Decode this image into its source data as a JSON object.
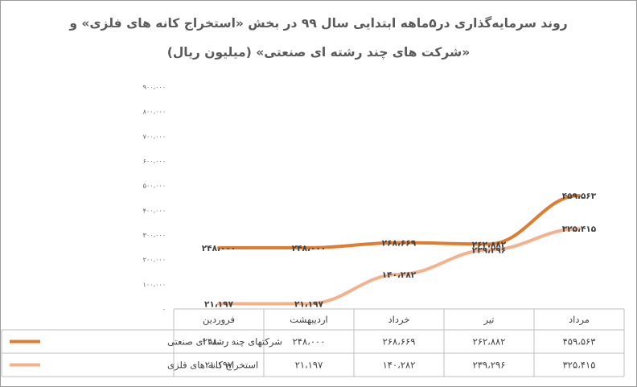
{
  "title_line1": "روند سرمایه‌گذاری در۵ماهه ابتدایی سال ۹۹ در بخش «استخراج کانه های فلزی» و",
  "title_line2": "«شرکت های چند رشته ای صنعتی» (میلیون ریال)",
  "colors": {
    "series_industrial": "#e07b2f",
    "series_mining": "#f5b08c",
    "grid": "#d9d9d9",
    "text": "#595959"
  },
  "chart_data": {
    "type": "line",
    "title": "روند سرمایه‌گذاری در۵ماهه ابتدایی سال ۹۹ در بخش «استخراج کانه های فلزی» و «شرکت های چند رشته ای صنعتی» (میلیون ریال)",
    "categories": [
      "فروردین",
      "اردیبهشت",
      "خرداد",
      "تیر",
      "مرداد"
    ],
    "ylim": [
      0,
      900000
    ],
    "ytick_values": [
      0,
      100000,
      200000,
      300000,
      400000,
      500000,
      600000,
      700000,
      800000,
      900000
    ],
    "ytick_labels": [
      "۰",
      "۱۰۰،۰۰۰",
      "۲۰۰،۰۰۰",
      "۳۰۰،۰۰۰",
      "۴۰۰،۰۰۰",
      "۵۰۰،۰۰۰",
      "۶۰۰،۰۰۰",
      "۷۰۰،۰۰۰",
      "۸۰۰،۰۰۰",
      "۹۰۰،۰۰۰"
    ],
    "grid": false,
    "legend": "data-table",
    "series": [
      {
        "name": "شرکتهای چند رشته ای صنعتی",
        "color": "#e07b2f",
        "values": [
          248000,
          248000,
          268669,
          262882,
          459563
        ],
        "labels": [
          "۲۴۸،۰۰۰",
          "۲۴۸،۰۰۰",
          "۲۶۸،۶۶۹",
          "۲۶۲،۸۸۲",
          "۴۵۹،۵۶۳"
        ]
      },
      {
        "name": "استخراج کانه های فلزی",
        "color": "#f5b08c",
        "values": [
          21197,
          21197,
          140282,
          239296,
          325415
        ],
        "labels": [
          "۲۱،۱۹۷",
          "۲۱،۱۹۷",
          "۱۴۰،۲۸۲",
          "۲۳۹،۲۹۶",
          "۳۲۵،۴۱۵"
        ]
      }
    ]
  }
}
